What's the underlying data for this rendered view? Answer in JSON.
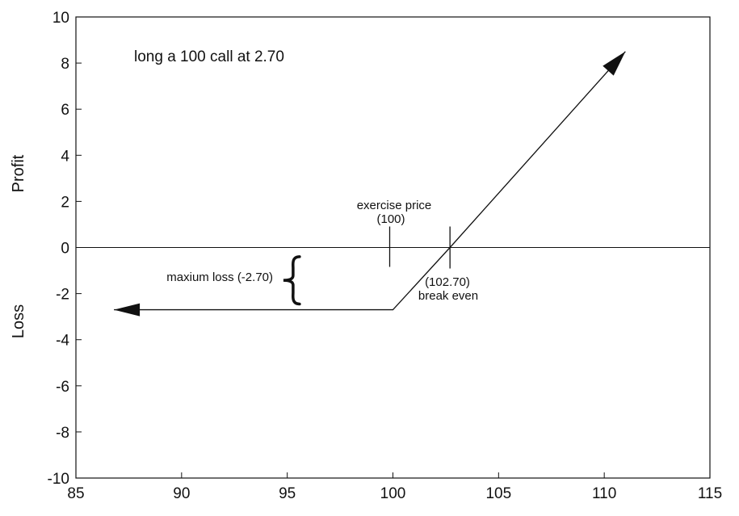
{
  "chart_data": {
    "type": "line",
    "title": "long a 100 call at 2.70",
    "ylabel_upper": "Profit",
    "ylabel_lower": "Loss",
    "xlim": [
      85,
      115
    ],
    "ylim": [
      -10,
      10
    ],
    "x_ticks": [
      85,
      90,
      95,
      100,
      105,
      110,
      115
    ],
    "y_ticks": [
      -10,
      -8,
      -6,
      -4,
      -2,
      0,
      2,
      4,
      6,
      8,
      10
    ],
    "grid": false,
    "series": [
      {
        "x": [
          86.8,
          100,
          102.7,
          111
        ],
        "y": [
          -2.7,
          -2.7,
          0,
          8.5
        ]
      }
    ],
    "zero_line": 0,
    "annotations": {
      "exercise_price": {
        "x": 100,
        "line1": "exercise price",
        "line2": "(100)"
      },
      "break_even": {
        "x": 102.7,
        "line1": "(102.70)",
        "line2": "break even"
      },
      "max_loss": {
        "label": "maxium loss (-2.70)",
        "x": 95.2,
        "y_from": -0.4,
        "y_to": -2.45
      }
    }
  }
}
